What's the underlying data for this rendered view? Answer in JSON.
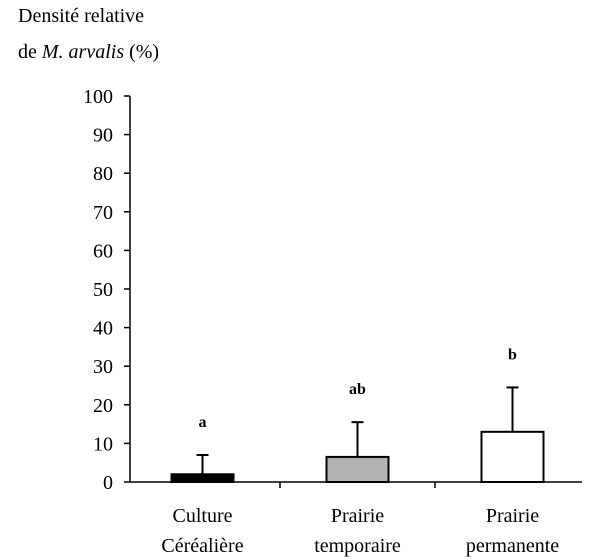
{
  "chart_data": {
    "type": "bar",
    "y_label": {
      "line1": "Densité relative",
      "line2": [
        "de",
        "M. arvalis",
        "(%)"
      ]
    },
    "categories": [
      [
        "Culture",
        "Céréalière"
      ],
      [
        "Prairie",
        "temporaire"
      ],
      [
        "Prairie",
        "permanente"
      ]
    ],
    "values": [
      2,
      6.5,
      13
    ],
    "errors": [
      5,
      9,
      11.5
    ],
    "annotations": [
      "a",
      "ab",
      "b"
    ],
    "colors": [
      "#000000",
      "#b3b3b3",
      "#ffffff"
    ],
    "ylim": [
      0,
      100
    ],
    "yticks": [
      0,
      10,
      20,
      30,
      40,
      50,
      60,
      70,
      80,
      90,
      100
    ],
    "grid": false
  }
}
